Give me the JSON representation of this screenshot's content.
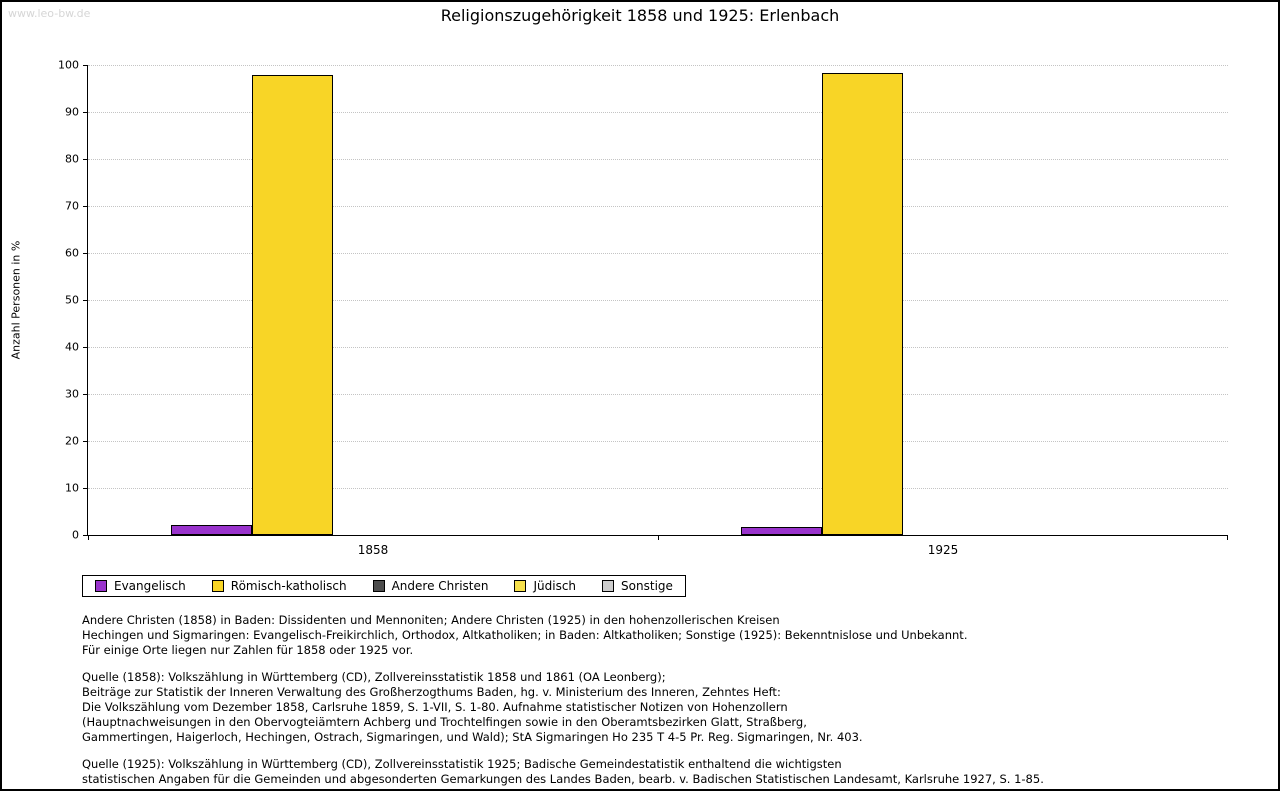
{
  "watermark": "www.leo-bw.de",
  "title": "Religionszugehörigkeit 1858 und 1925: Erlenbach",
  "chart_data": {
    "type": "bar",
    "title": "Religionszugehörigkeit 1858 und 1925: Erlenbach",
    "categories": [
      "1858",
      "1925"
    ],
    "series": [
      {
        "name": "Evangelisch",
        "color": "#9933cc",
        "values": [
          2.2,
          1.7
        ]
      },
      {
        "name": "Römisch-katholisch",
        "color": "#f8d526",
        "values": [
          97.8,
          98.3
        ]
      },
      {
        "name": "Andere Christen",
        "color": "#4d4d4d",
        "values": [
          0,
          0
        ]
      },
      {
        "name": "Jüdisch",
        "color": "#f6e04c",
        "values": [
          0,
          0
        ]
      },
      {
        "name": "Sonstige",
        "color": "#cccccc",
        "values": [
          0,
          0
        ]
      }
    ],
    "xlabel": "",
    "ylabel": "Anzahl Personen in %",
    "ylim": [
      0,
      100
    ],
    "yticks": [
      0,
      10,
      20,
      30,
      40,
      50,
      60,
      70,
      80,
      90,
      100
    ],
    "grid": true,
    "gridline_style": "dotted",
    "legend_position": "bottom-left"
  },
  "footnotes": [
    {
      "lines": [
        "Andere Christen (1858) in Baden: Dissidenten und Mennoniten; Andere Christen (1925) in den hohenzollerischen Kreisen",
        "Hechingen und Sigmaringen: Evangelisch-Freikirchlich, Orthodox, Altkatholiken; in Baden: Altkatholiken; Sonstige (1925): Bekenntnislose und Unbekannt.",
        "Für einige Orte liegen nur Zahlen für 1858 oder 1925 vor."
      ]
    },
    {
      "lines": [
        "Quelle (1858): Volkszählung in Württemberg (CD), Zollvereinsstatistik 1858 und 1861 (OA Leonberg);",
        "Beiträge zur Statistik der Inneren Verwaltung des Großherzogthums Baden, hg. v. Ministerium des Inneren, Zehntes Heft:",
        "Die Volkszählung vom Dezember 1858, Carlsruhe 1859, S. 1-VII, S. 1-80. Aufnahme statistischer Notizen von Hohenzollern",
        "(Hauptnachweisungen in den Obervogteiämtern Achberg und Trochtelfingen sowie in den Oberamtsbezirken Glatt, Straßberg,",
        "Gammertingen, Haigerloch, Hechingen, Ostrach, Sigmaringen, und Wald); StA Sigmaringen Ho 235 T 4-5 Pr. Reg. Sigmaringen, Nr. 403."
      ]
    },
    {
      "lines": [
        "Quelle (1925): Volkszählung in Württemberg (CD), Zollvereinsstatistik 1925; Badische Gemeindestatistik enthaltend die wichtigsten",
        "statistischen Angaben für die Gemeinden und abgesonderten Gemarkungen des Landes Baden, bearb. v. Badischen Statistischen Landesamt, Karlsruhe 1927, S. 1-85."
      ]
    }
  ]
}
